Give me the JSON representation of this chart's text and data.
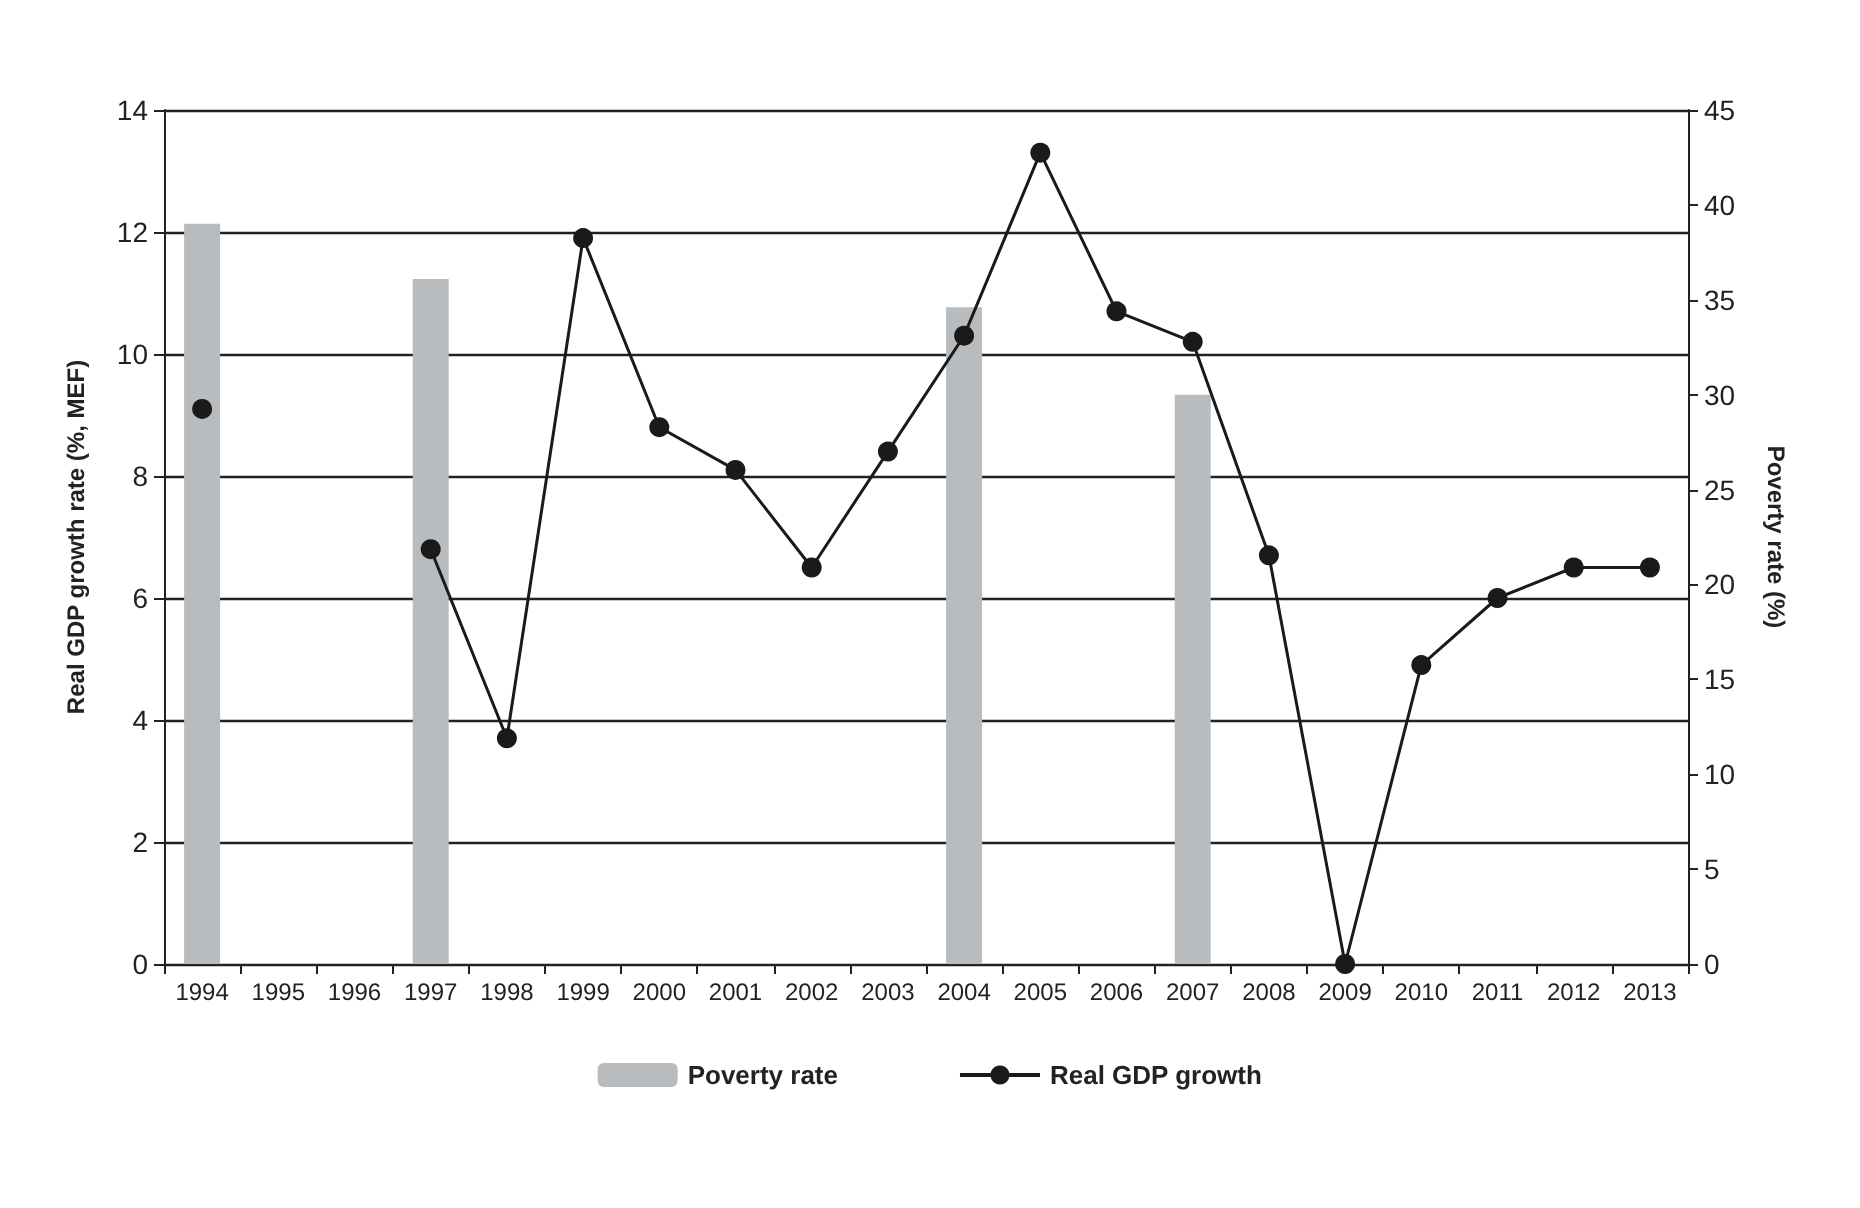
{
  "chart_data": {
    "type": "bar",
    "ylabel": "Real GDP growth rate (%, MEF)",
    "y2label": "Poverty rate (%)",
    "categories": [
      "1994",
      "1995",
      "1996",
      "1997",
      "1998",
      "1999",
      "2000",
      "2001",
      "2002",
      "2003",
      "2004",
      "2005",
      "2006",
      "2007",
      "2008",
      "2009",
      "2010",
      "2011",
      "2012",
      "2013"
    ],
    "series": [
      {
        "name": "Poverty rate",
        "axis": "y2",
        "color": "#b9bcbf",
        "values": [
          39.0,
          null,
          null,
          36.1,
          null,
          null,
          null,
          null,
          null,
          null,
          34.6,
          null,
          null,
          30.0,
          null,
          null,
          null,
          null,
          null,
          null
        ]
      },
      {
        "name": "Real GDP growth",
        "type": "line",
        "color": "#1a1a1a",
        "values": [
          9.1,
          null,
          null,
          6.8,
          3.7,
          11.9,
          8.8,
          8.1,
          6.5,
          8.4,
          10.3,
          13.3,
          10.7,
          10.2,
          6.7,
          0.0,
          4.9,
          6.0,
          6.5,
          6.5
        ]
      }
    ],
    "ylim": [
      0,
      14
    ],
    "yticks": [
      0,
      2,
      4,
      6,
      8,
      10,
      12,
      14
    ],
    "y2lim": [
      0,
      45
    ],
    "y2ticks": [
      0,
      5,
      10,
      15,
      20,
      25,
      30,
      35,
      40,
      45
    ],
    "grid": "y",
    "legend": "bottom",
    "marker": "circle",
    "line_style": "solid"
  }
}
